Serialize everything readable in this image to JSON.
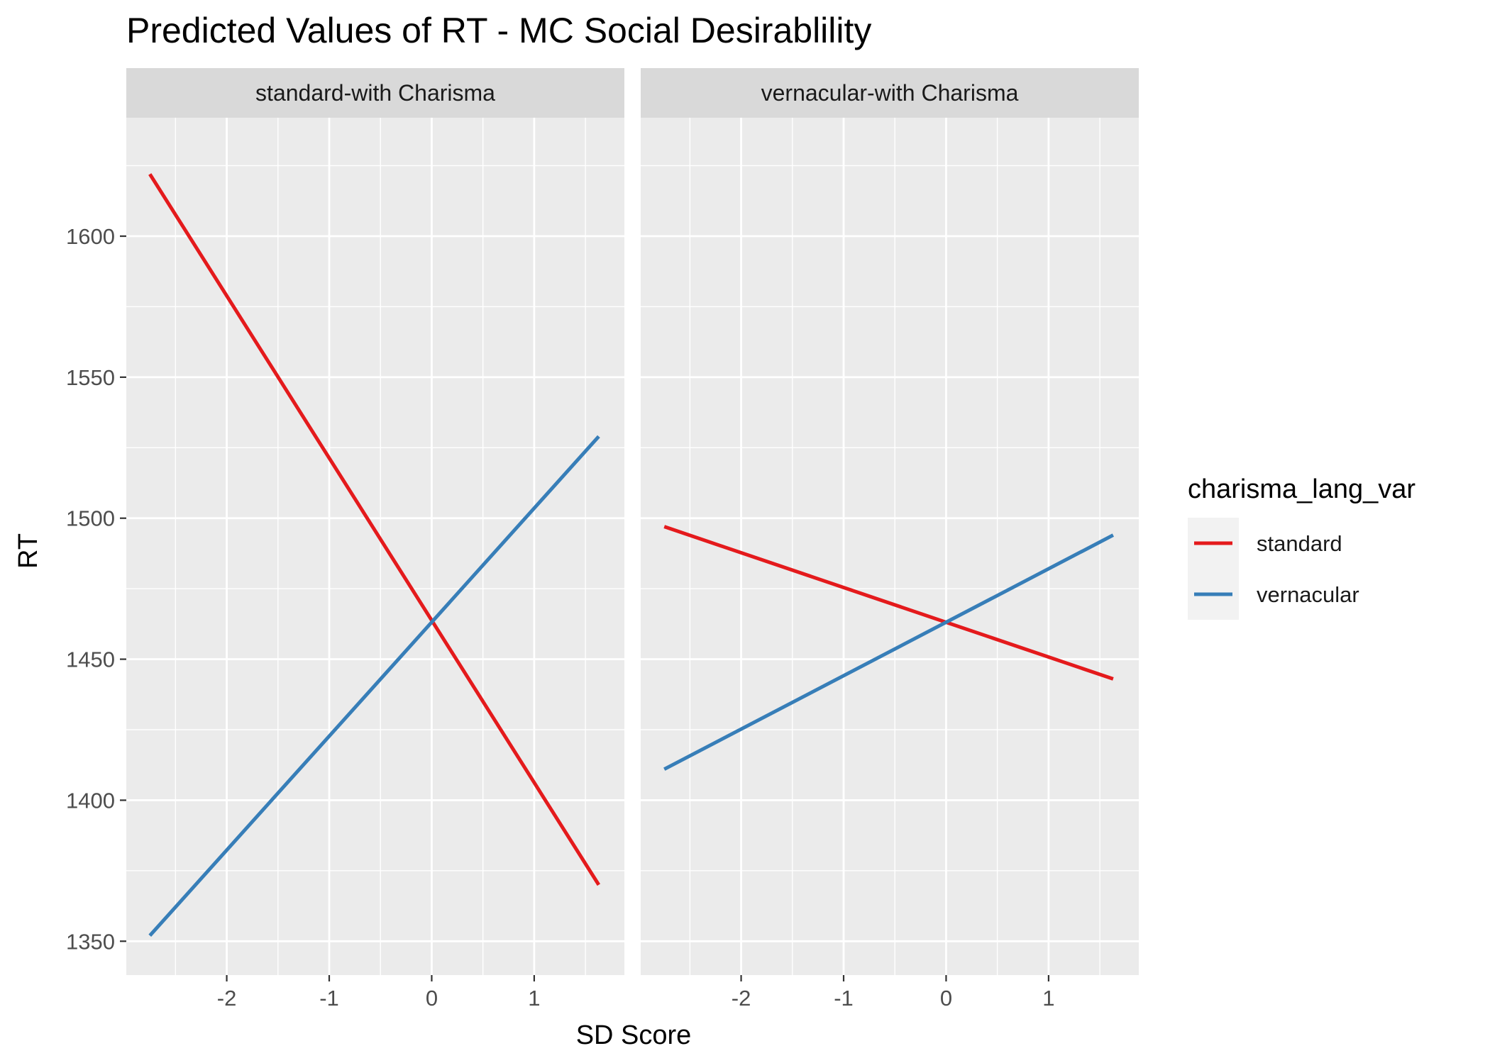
{
  "chart_data": {
    "type": "line",
    "title": "Predicted Values of RT - MC Social Desirablility",
    "xlabel": "SD Score",
    "ylabel": "RT",
    "xlim": [
      -2.98,
      1.88
    ],
    "ylim": [
      1338,
      1642
    ],
    "x_ticks": [
      -2,
      -1,
      0,
      1
    ],
    "y_ticks": [
      1350,
      1400,
      1450,
      1500,
      1550,
      1600
    ],
    "grid": true,
    "legend": {
      "title": "charisma_lang_var",
      "position": "right",
      "entries": [
        {
          "name": "standard",
          "color": "#e41a1c"
        },
        {
          "name": "vernacular",
          "color": "#377eb8"
        }
      ]
    },
    "panels": [
      {
        "strip": "standard-with Charisma",
        "series": [
          {
            "name": "standard",
            "color": "#e41a1c",
            "x": [
              -2.75,
              1.63
            ],
            "y": [
              1622,
              1370
            ]
          },
          {
            "name": "vernacular",
            "color": "#377eb8",
            "x": [
              -2.75,
              1.63
            ],
            "y": [
              1352,
              1529
            ]
          }
        ]
      },
      {
        "strip": "vernacular-with Charisma",
        "series": [
          {
            "name": "standard",
            "color": "#e41a1c",
            "x": [
              -2.75,
              1.63
            ],
            "y": [
              1497,
              1443
            ]
          },
          {
            "name": "vernacular",
            "color": "#377eb8",
            "x": [
              -2.75,
              1.63
            ],
            "y": [
              1411,
              1494
            ]
          }
        ]
      }
    ]
  }
}
